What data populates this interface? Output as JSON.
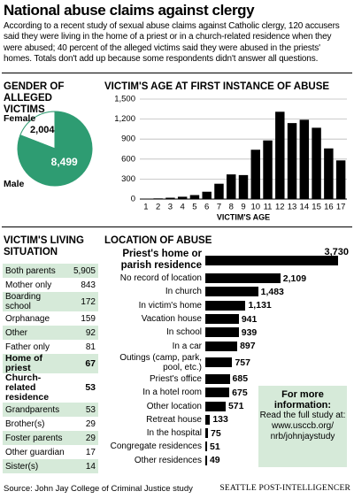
{
  "header": {
    "title": "National abuse claims against clergy",
    "intro": "According to a recent study of sexual abuse claims against Catholic clergy, 120 accusers said they were living in the home of a priest or in a church-related residence when they were abused; 40 percent of the alleged victims said they were abused in the priests' homes. Totals don't add up because some respondents didn't answer all questions."
  },
  "chart_data": [
    {
      "type": "pie",
      "title": "GENDER OF ALLEGED VICTIMS",
      "categories": [
        "Female",
        "Male"
      ],
      "values": [
        2004,
        8499
      ],
      "value_labels": [
        "2,004",
        "8,499"
      ],
      "colors": [
        "#ffffff",
        "#2e9c72"
      ]
    },
    {
      "type": "bar",
      "title": "VICTIM'S AGE AT FIRST INSTANCE OF ABUSE",
      "x_label": "VICTIM'S AGE",
      "categories": [
        "1",
        "2",
        "3",
        "4",
        "5",
        "6",
        "7",
        "8",
        "9",
        "10",
        "11",
        "12",
        "13",
        "14",
        "15",
        "16",
        "17"
      ],
      "values": [
        5,
        10,
        20,
        35,
        60,
        110,
        230,
        370,
        360,
        740,
        880,
        1310,
        1140,
        1190,
        1070,
        760,
        580
      ],
      "color": "#000000",
      "ylim": [
        0,
        1500
      ],
      "yticks": [
        0,
        300,
        600,
        900,
        {
          "value": 1200,
          "label": "1,200"
        },
        {
          "value": 1500,
          "label": "1,500"
        }
      ],
      "grid": true
    },
    {
      "type": "hbar",
      "title": "LOCATION OF ABUSE",
      "categories": [
        "Priest's home or parish residence",
        "No record of location",
        "In church",
        "In victim's home",
        "Vacation house",
        "In school",
        "In a car",
        "Outings (camp, park, pool, etc.)",
        "Priest's office",
        "In a hotel room",
        "Other location",
        "Retreat house",
        "In the hospital",
        "Congregate residences",
        "Other residences"
      ],
      "values": [
        3730,
        2109,
        1483,
        1131,
        941,
        939,
        897,
        757,
        685,
        675,
        571,
        133,
        75,
        51,
        49
      ],
      "value_labels": [
        "3,730",
        "2,109",
        "1,483",
        "1,131",
        "941",
        "939",
        "897",
        "757",
        "685",
        "675",
        "571",
        "133",
        "75",
        "51",
        "49"
      ],
      "color": "#000000"
    }
  ],
  "living_situation": {
    "title": "VICTIM'S LIVING SITUATION",
    "rows": [
      [
        "Both parents",
        "5,905"
      ],
      [
        "Mother only",
        "843"
      ],
      [
        "Boarding school",
        "172"
      ],
      [
        "Orphanage",
        "159"
      ],
      [
        "Other",
        "92"
      ],
      [
        "Father only",
        "81"
      ],
      [
        "Home of priest",
        "67"
      ],
      [
        "Church-related residence",
        "53"
      ],
      [
        "Grandparents",
        "53"
      ],
      [
        "Brother(s)",
        "29"
      ],
      [
        "Foster parents",
        "29"
      ],
      [
        "Other guardian",
        "17"
      ],
      [
        "Sister(s)",
        "14"
      ]
    ]
  },
  "info_box": {
    "heading": "For more information:",
    "text": "Read the full study at:",
    "url": "www.usccb.org/ nrb/johnjaystudy"
  },
  "source": "Source: John Jay College of Criminal Justice study",
  "credit": "SEATTLE POST-INTELLIGENCER"
}
